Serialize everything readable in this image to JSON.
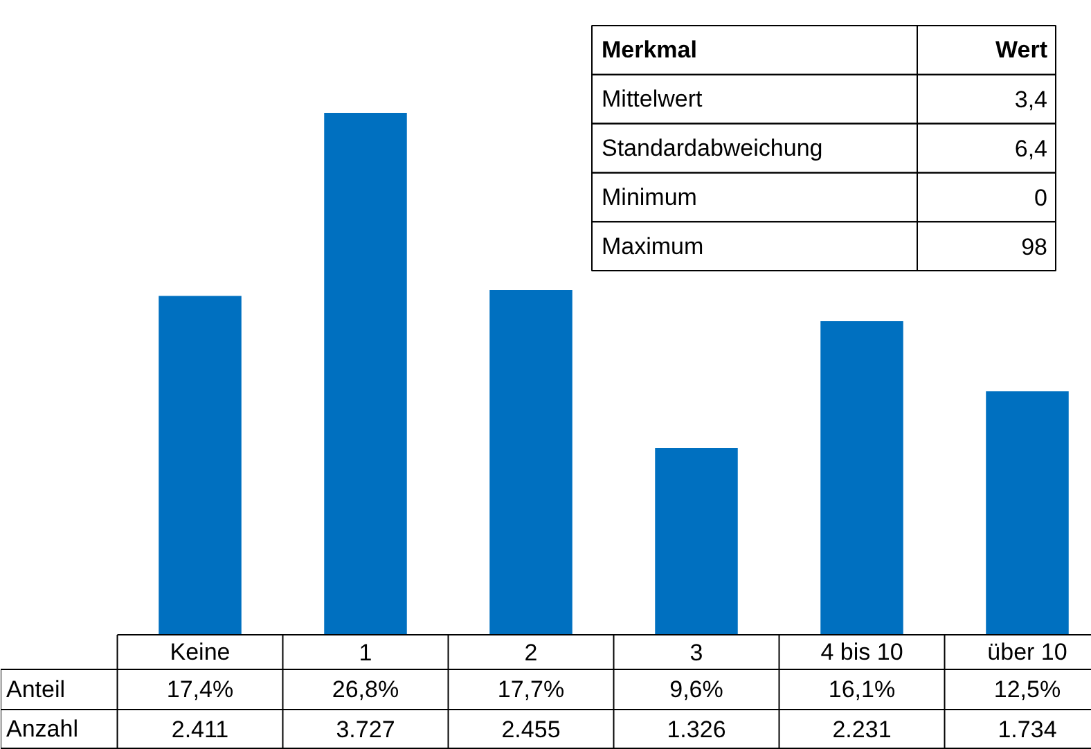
{
  "chart_data": {
    "type": "bar",
    "categories": [
      "Keine",
      "1",
      "2",
      "3",
      "4 bis 10",
      "über 10"
    ],
    "values": [
      17.4,
      26.8,
      17.7,
      9.6,
      16.1,
      12.5
    ],
    "color": "#0070c0",
    "value_labels": [
      "17,4%",
      "26,8%",
      "17,7%",
      "9,6%",
      "16,1%",
      "12,5%"
    ],
    "annotations": [
      "Anteil",
      "Anzahl",
      "2.411",
      "3.727",
      "2.455",
      "1.326",
      "2.231",
      "1.734",
      "Merkmal",
      "Wert",
      "Mittelwert",
      "3,4",
      "Standardabweichung",
      "6,4",
      "Minimum",
      "0",
      "Maximum",
      "98"
    ]
  }
}
